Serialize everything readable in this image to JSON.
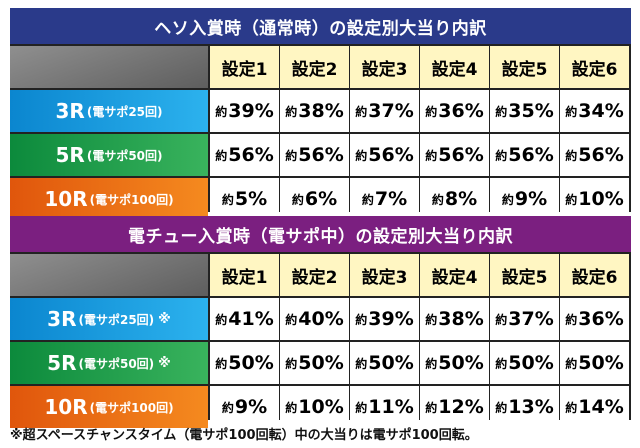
{
  "table1": {
    "title": "ヘソ入賞時（通常時）の設定別大当り内訳",
    "headers": [
      "設定1",
      "設定2",
      "設定3",
      "設定4",
      "設定5",
      "設定6"
    ],
    "prefix": "約",
    "rows": [
      {
        "main": "3R",
        "sub": "(電サポ25回)",
        "note": "",
        "values": [
          "39%",
          "38%",
          "37%",
          "36%",
          "35%",
          "34%"
        ]
      },
      {
        "main": "5R",
        "sub": "(電サポ50回)",
        "note": "",
        "values": [
          "56%",
          "56%",
          "56%",
          "56%",
          "56%",
          "56%"
        ]
      },
      {
        "main": "10R",
        "sub": "(電サポ100回)",
        "note": "",
        "values": [
          "5%",
          "6%",
          "7%",
          "8%",
          "9%",
          "10%"
        ]
      }
    ]
  },
  "table2": {
    "title": "電チュー入賞時（電サポ中）の設定別大当り内訳",
    "headers": [
      "設定1",
      "設定2",
      "設定3",
      "設定4",
      "設定5",
      "設定6"
    ],
    "prefix": "約",
    "rows": [
      {
        "main": "3R",
        "sub": "(電サポ25回)",
        "note": "※",
        "values": [
          "41%",
          "40%",
          "39%",
          "38%",
          "37%",
          "36%"
        ]
      },
      {
        "main": "5R",
        "sub": "(電サポ50回)",
        "note": "※",
        "values": [
          "50%",
          "50%",
          "50%",
          "50%",
          "50%",
          "50%"
        ]
      },
      {
        "main": "10R",
        "sub": "(電サポ100回)",
        "note": "",
        "values": [
          "9%",
          "10%",
          "11%",
          "12%",
          "13%",
          "14%"
        ]
      }
    ]
  },
  "footnote": "※超スペースチャンスタイム（電サポ100回転）中の大当りは電サポ100回転。",
  "colors": {
    "title1_bg": "#2a3a8a",
    "title2_bg": "#7b1f80",
    "header_bg": "#fff6c2",
    "row_3r": "#1a9fe0",
    "row_5r": "#1f9d48",
    "row_10r": "#ee7216",
    "corner": "#777777"
  }
}
